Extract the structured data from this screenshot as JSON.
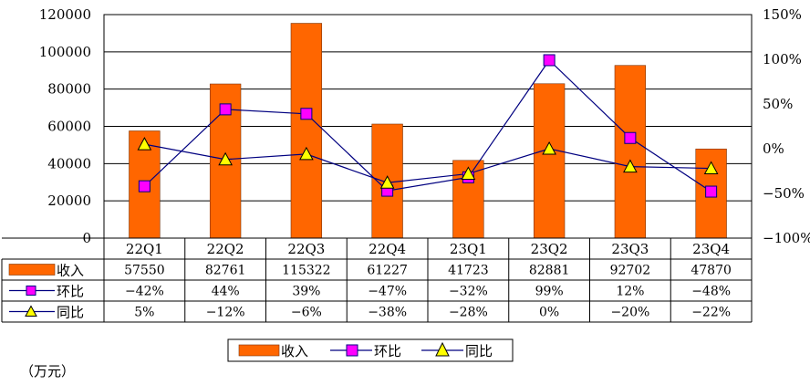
{
  "colors": {
    "bar": "#FF6600",
    "bar_stroke": "#7a3000",
    "qoq_marker": "#FF00FF",
    "yoy_marker": "#FFFF00",
    "line": "#000080",
    "gridline": "#000000"
  },
  "unit_label": "（万元）",
  "chart_data": {
    "type": "bar",
    "categories": [
      "22Q1",
      "22Q2",
      "22Q3",
      "22Q4",
      "23Q1",
      "23Q2",
      "23Q3",
      "23Q4"
    ],
    "series": [
      {
        "name": "收入",
        "type": "bar",
        "axis": "left",
        "values": [
          57550,
          82761,
          115322,
          61227,
          41723,
          82881,
          92702,
          47870
        ]
      },
      {
        "name": "环比",
        "type": "line",
        "axis": "right",
        "marker": "square",
        "values": [
          -42,
          44,
          39,
          -47,
          -32,
          99,
          12,
          -48
        ],
        "labels": [
          "−42%",
          "44%",
          "39%",
          "−47%",
          "−32%",
          "99%",
          "12%",
          "−48%"
        ]
      },
      {
        "name": "同比",
        "type": "line",
        "axis": "right",
        "marker": "triangle",
        "values": [
          5,
          -12,
          -6,
          -38,
          -28,
          0,
          -20,
          -22
        ],
        "labels": [
          "5%",
          "−12%",
          "−6%",
          "−38%",
          "−28%",
          "0%",
          "−20%",
          "−22%"
        ]
      }
    ],
    "left_axis": {
      "ylim": [
        0,
        120000
      ],
      "ticks": [
        "0",
        "20000",
        "40000",
        "60000",
        "80000",
        "100000",
        "120000"
      ]
    },
    "right_axis": {
      "ylim": [
        -100,
        150
      ],
      "ticks": [
        "−100%",
        "−50%",
        "0%",
        "50%",
        "100%",
        "150%"
      ]
    },
    "grid": true,
    "legend": {
      "position": "bottom",
      "entries": [
        "收入",
        "环比",
        "同比"
      ]
    },
    "data_table": true
  }
}
